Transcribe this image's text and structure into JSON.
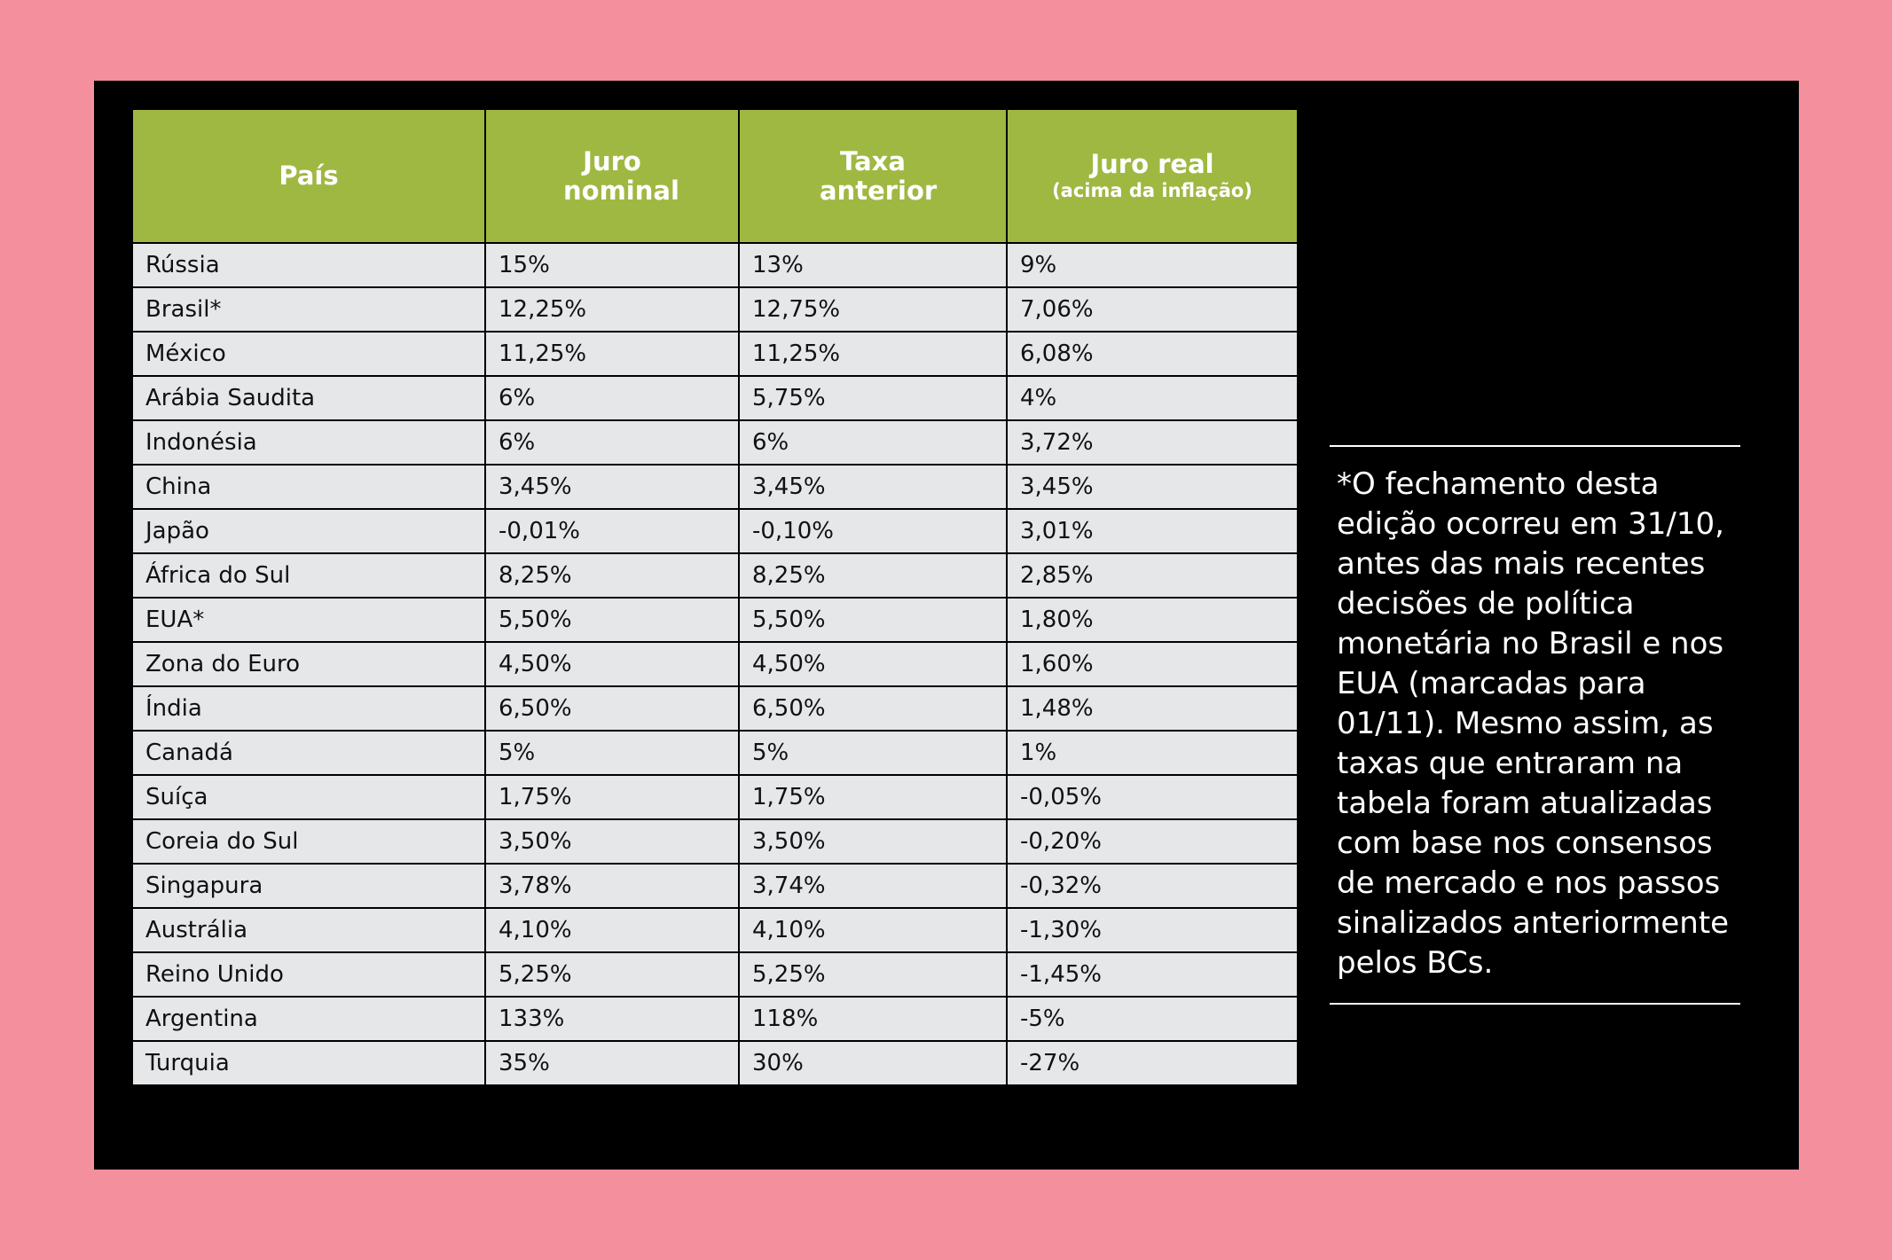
{
  "table": {
    "headers": {
      "country": "País",
      "nominal": "Juro nominal",
      "previous": "Taxa anterior",
      "real": "Juro real",
      "real_note": "(acima da inflação)"
    },
    "rows": [
      [
        "Rússia",
        "15%",
        "13%",
        "9%"
      ],
      [
        "Brasil*",
        "12,25%",
        "12,75%",
        "7,06%"
      ],
      [
        "México",
        "11,25%",
        "11,25%",
        "6,08%"
      ],
      [
        "Arábia Saudita",
        "6%",
        "5,75%",
        "4%"
      ],
      [
        "Indonésia",
        "6%",
        "6%",
        "3,72%"
      ],
      [
        "China",
        "3,45%",
        "3,45%",
        "3,45%"
      ],
      [
        "Japão",
        "-0,01%",
        "-0,10%",
        "3,01%"
      ],
      [
        "África do Sul",
        "8,25%",
        "8,25%",
        "2,85%"
      ],
      [
        "EUA*",
        "5,50%",
        "5,50%",
        "1,80%"
      ],
      [
        "Zona do Euro",
        "4,50%",
        "4,50%",
        "1,60%"
      ],
      [
        "Índia",
        "6,50%",
        "6,50%",
        "1,48%"
      ],
      [
        "Canadá",
        "5%",
        "5%",
        "1%"
      ],
      [
        "Suíça",
        "1,75%",
        "1,75%",
        "-0,05%"
      ],
      [
        "Coreia do Sul",
        "3,50%",
        "3,50%",
        "-0,20%"
      ],
      [
        "Singapura",
        "3,78%",
        "3,74%",
        "-0,32%"
      ],
      [
        "Austrália",
        "4,10%",
        "4,10%",
        "-1,30%"
      ],
      [
        "Reino Unido",
        "5,25%",
        "5,25%",
        "-1,45%"
      ],
      [
        "Argentina",
        "133%",
        "118%",
        "-5%"
      ],
      [
        "Turquia",
        "35%",
        "30%",
        "-27%"
      ]
    ]
  },
  "footnote": "*O fechamento desta edição ocorreu em 31/10, antes das mais recentes decisões de política monetária no Brasil e nos EUA (marcadas para 01/11). Mesmo assim, as taxas que entraram na tabela foram atualizadas com base nos consensos de mercado e nos passos sinalizados anteriormente pelos BCs.",
  "colors": {
    "background": "#f48f9e",
    "panel": "#000000",
    "header": "#9fb842",
    "cell": "#e6e7e9"
  }
}
